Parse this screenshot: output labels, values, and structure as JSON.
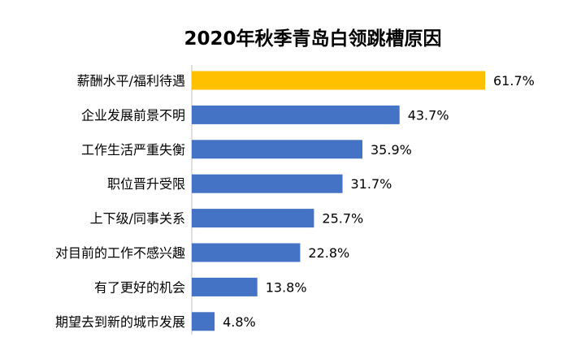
{
  "chart_data": {
    "type": "bar",
    "orientation": "horizontal",
    "title": "2020年秋季青岛白领跳槽原因",
    "categories": [
      "薪酬水平/福利待遇",
      "企业发展前景不明",
      "工作生活严重失衡",
      "职位晋升受限",
      "上下级/同事关系",
      "对目前的工作不感兴趣",
      "有了更好的机会",
      "期望去到新的城市发展"
    ],
    "values": [
      61.7,
      43.7,
      35.9,
      31.7,
      25.7,
      22.8,
      13.8,
      4.8
    ],
    "value_labels": [
      "61.7%",
      "43.7%",
      "35.9%",
      "31.7%",
      "25.7%",
      "22.8%",
      "13.8%",
      "4.8%"
    ],
    "unit": "%",
    "xlim": [
      0,
      61.7
    ],
    "grid": false,
    "legend": "none",
    "colors": {
      "highlight": "#FFC000",
      "default": "#4472C4",
      "axis": "#BFBFBF"
    },
    "highlight_index": 0
  }
}
